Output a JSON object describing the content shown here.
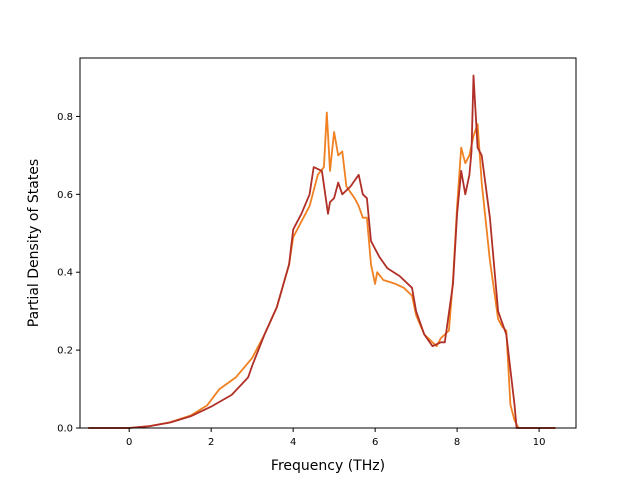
{
  "chart_data": {
    "type": "line",
    "title": "",
    "xlabel": "Frequency (THz)",
    "ylabel": "Partial Density of States",
    "xlim": [
      -1.2,
      10.9
    ],
    "ylim": [
      0.0,
      0.95
    ],
    "xticks": [
      0,
      2,
      4,
      6,
      8,
      10
    ],
    "xtick_labels": [
      "0",
      "2",
      "4",
      "6",
      "8",
      "10"
    ],
    "yticks": [
      0.0,
      0.2,
      0.4,
      0.6,
      0.8
    ],
    "ytick_labels": [
      "0.0",
      "0.2",
      "0.4",
      "0.6",
      "0.8"
    ],
    "grid": false,
    "legend": "none",
    "series": [
      {
        "color": "#f08020",
        "points": [
          [
            -1.0,
            0.0
          ],
          [
            0.0,
            0.0
          ],
          [
            0.5,
            0.005
          ],
          [
            1.0,
            0.015
          ],
          [
            1.5,
            0.032
          ],
          [
            1.9,
            0.058
          ],
          [
            2.2,
            0.1
          ],
          [
            2.6,
            0.13
          ],
          [
            3.0,
            0.18
          ],
          [
            3.3,
            0.24
          ],
          [
            3.6,
            0.31
          ],
          [
            3.9,
            0.42
          ],
          [
            4.0,
            0.49
          ],
          [
            4.2,
            0.53
          ],
          [
            4.4,
            0.57
          ],
          [
            4.6,
            0.65
          ],
          [
            4.75,
            0.67
          ],
          [
            4.82,
            0.81
          ],
          [
            4.9,
            0.66
          ],
          [
            5.0,
            0.76
          ],
          [
            5.1,
            0.7
          ],
          [
            5.2,
            0.71
          ],
          [
            5.3,
            0.62
          ],
          [
            5.5,
            0.59
          ],
          [
            5.6,
            0.57
          ],
          [
            5.7,
            0.54
          ],
          [
            5.8,
            0.54
          ],
          [
            5.9,
            0.42
          ],
          [
            6.0,
            0.37
          ],
          [
            6.05,
            0.4
          ],
          [
            6.2,
            0.38
          ],
          [
            6.5,
            0.37
          ],
          [
            6.7,
            0.36
          ],
          [
            6.9,
            0.34
          ],
          [
            7.0,
            0.29
          ],
          [
            7.2,
            0.24
          ],
          [
            7.4,
            0.22
          ],
          [
            7.5,
            0.21
          ],
          [
            7.6,
            0.23
          ],
          [
            7.8,
            0.25
          ],
          [
            7.9,
            0.38
          ],
          [
            8.0,
            0.57
          ],
          [
            8.1,
            0.72
          ],
          [
            8.2,
            0.68
          ],
          [
            8.3,
            0.7
          ],
          [
            8.4,
            0.75
          ],
          [
            8.5,
            0.78
          ],
          [
            8.6,
            0.63
          ],
          [
            8.8,
            0.43
          ],
          [
            9.0,
            0.28
          ],
          [
            9.1,
            0.26
          ],
          [
            9.2,
            0.25
          ],
          [
            9.3,
            0.06
          ],
          [
            9.4,
            0.02
          ],
          [
            9.5,
            0.0
          ],
          [
            10.4,
            0.0
          ]
        ]
      },
      {
        "color": "#b03028",
        "points": [
          [
            -1.0,
            0.0
          ],
          [
            0.0,
            0.0
          ],
          [
            0.5,
            0.005
          ],
          [
            1.0,
            0.014
          ],
          [
            1.5,
            0.03
          ],
          [
            2.0,
            0.055
          ],
          [
            2.5,
            0.085
          ],
          [
            2.9,
            0.13
          ],
          [
            3.0,
            0.16
          ],
          [
            3.3,
            0.24
          ],
          [
            3.6,
            0.31
          ],
          [
            3.9,
            0.42
          ],
          [
            4.0,
            0.51
          ],
          [
            4.2,
            0.55
          ],
          [
            4.4,
            0.6
          ],
          [
            4.5,
            0.67
          ],
          [
            4.7,
            0.66
          ],
          [
            4.85,
            0.55
          ],
          [
            4.9,
            0.58
          ],
          [
            5.0,
            0.59
          ],
          [
            5.1,
            0.63
          ],
          [
            5.2,
            0.6
          ],
          [
            5.4,
            0.62
          ],
          [
            5.6,
            0.65
          ],
          [
            5.7,
            0.6
          ],
          [
            5.8,
            0.59
          ],
          [
            5.9,
            0.48
          ],
          [
            6.1,
            0.44
          ],
          [
            6.3,
            0.41
          ],
          [
            6.6,
            0.39
          ],
          [
            6.9,
            0.36
          ],
          [
            7.0,
            0.3
          ],
          [
            7.2,
            0.24
          ],
          [
            7.4,
            0.21
          ],
          [
            7.6,
            0.22
          ],
          [
            7.7,
            0.22
          ],
          [
            7.9,
            0.37
          ],
          [
            8.0,
            0.55
          ],
          [
            8.1,
            0.66
          ],
          [
            8.2,
            0.6
          ],
          [
            8.3,
            0.65
          ],
          [
            8.35,
            0.71
          ],
          [
            8.4,
            0.905
          ],
          [
            8.5,
            0.72
          ],
          [
            8.6,
            0.7
          ],
          [
            8.8,
            0.54
          ],
          [
            9.0,
            0.3
          ],
          [
            9.1,
            0.27
          ],
          [
            9.2,
            0.24
          ],
          [
            9.3,
            0.15
          ],
          [
            9.4,
            0.06
          ],
          [
            9.45,
            0.0
          ],
          [
            10.4,
            0.0
          ]
        ]
      }
    ]
  }
}
